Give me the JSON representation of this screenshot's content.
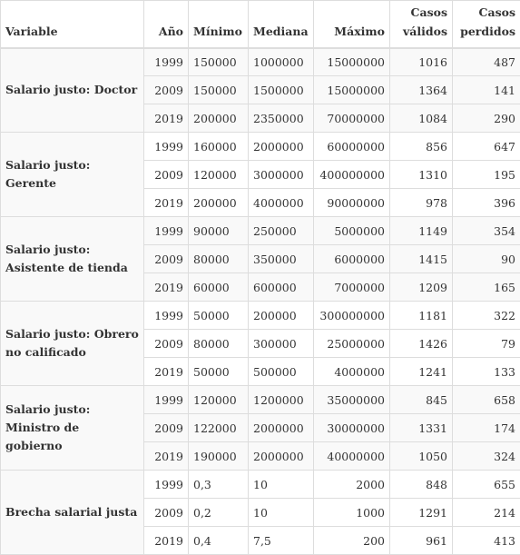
{
  "headers": {
    "variable": "Variable",
    "year": "Año",
    "min": "Mínimo",
    "median": "Mediana",
    "max": "Máximo",
    "valid": "Casos válidos",
    "missing": "Casos perdidos"
  },
  "groups": [
    {
      "label": "Salario justo: Doctor",
      "rows": [
        {
          "year": "1999",
          "min": "150000",
          "median": "1000000",
          "max": "15000000",
          "valid": "1016",
          "missing": "487"
        },
        {
          "year": "2009",
          "min": "150000",
          "median": "1500000",
          "max": "15000000",
          "valid": "1364",
          "missing": "141"
        },
        {
          "year": "2019",
          "min": "200000",
          "median": "2350000",
          "max": "70000000",
          "valid": "1084",
          "missing": "290"
        }
      ]
    },
    {
      "label": "Salario justo: Gerente",
      "rows": [
        {
          "year": "1999",
          "min": "160000",
          "median": "2000000",
          "max": "60000000",
          "valid": "856",
          "missing": "647"
        },
        {
          "year": "2009",
          "min": "120000",
          "median": "3000000",
          "max": "400000000",
          "valid": "1310",
          "missing": "195"
        },
        {
          "year": "2019",
          "min": "200000",
          "median": "4000000",
          "max": "90000000",
          "valid": "978",
          "missing": "396"
        }
      ]
    },
    {
      "label": "Salario justo: Asistente de tienda",
      "rows": [
        {
          "year": "1999",
          "min": "90000",
          "median": "250000",
          "max": "5000000",
          "valid": "1149",
          "missing": "354"
        },
        {
          "year": "2009",
          "min": "80000",
          "median": "350000",
          "max": "6000000",
          "valid": "1415",
          "missing": "90"
        },
        {
          "year": "2019",
          "min": "60000",
          "median": "600000",
          "max": "7000000",
          "valid": "1209",
          "missing": "165"
        }
      ]
    },
    {
      "label": "Salario justo: Obrero no calificado",
      "rows": [
        {
          "year": "1999",
          "min": "50000",
          "median": "200000",
          "max": "300000000",
          "valid": "1181",
          "missing": "322"
        },
        {
          "year": "2009",
          "min": "80000",
          "median": "300000",
          "max": "25000000",
          "valid": "1426",
          "missing": "79"
        },
        {
          "year": "2019",
          "min": "50000",
          "median": "500000",
          "max": "4000000",
          "valid": "1241",
          "missing": "133"
        }
      ]
    },
    {
      "label": "Salario justo: Ministro de gobierno",
      "rows": [
        {
          "year": "1999",
          "min": "120000",
          "median": "1200000",
          "max": "35000000",
          "valid": "845",
          "missing": "658"
        },
        {
          "year": "2009",
          "min": "122000",
          "median": "2000000",
          "max": "30000000",
          "valid": "1331",
          "missing": "174"
        },
        {
          "year": "2019",
          "min": "190000",
          "median": "2000000",
          "max": "40000000",
          "valid": "1050",
          "missing": "324"
        }
      ]
    },
    {
      "label": "Brecha salarial justa",
      "rows": [
        {
          "year": "1999",
          "min": "0,3",
          "median": "10",
          "max": "2000",
          "valid": "848",
          "missing": "655"
        },
        {
          "year": "2009",
          "min": "0,2",
          "median": "10",
          "max": "1000",
          "valid": "1291",
          "missing": "214"
        },
        {
          "year": "2019",
          "min": "0,4",
          "median": "7,5",
          "max": "200",
          "valid": "961",
          "missing": "413"
        }
      ]
    }
  ]
}
